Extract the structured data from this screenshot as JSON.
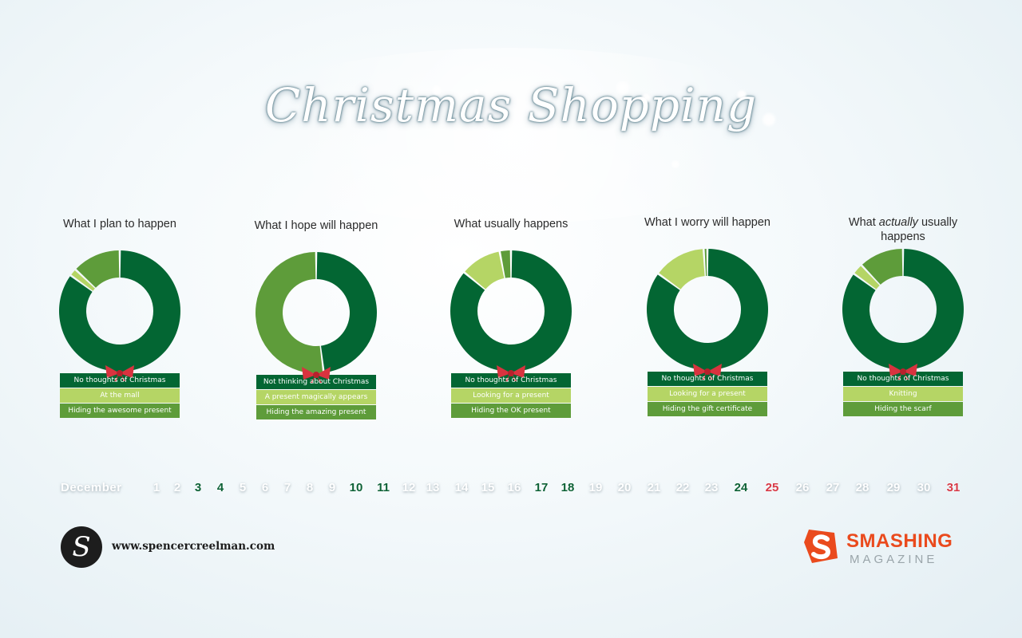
{
  "title": "Christmas Shopping",
  "colors": {
    "dark": "#036633",
    "light": "#b5d565",
    "mid": "#5e9c3a",
    "bow": "#d9333f",
    "weekend": "#0e6236",
    "holiday": "#d83a47"
  },
  "chart_data": [
    {
      "type": "pie",
      "title_parts": [
        "What I plan to happen"
      ],
      "categories": [
        "No thoughts of Christmas",
        "At the mall",
        "Hiding the awesome present"
      ],
      "values": [
        85,
        2,
        13
      ]
    },
    {
      "type": "pie",
      "title_parts": [
        "What I hope will happen"
      ],
      "categories": [
        "Not thinking about Christmas",
        "A present magically appears",
        "Hiding the amazing present"
      ],
      "values": [
        48,
        0,
        52
      ]
    },
    {
      "type": "pie",
      "title_parts": [
        "What usually happens"
      ],
      "categories": [
        "No thoughts of Christmas",
        "Looking for a present",
        "Hiding the OK present"
      ],
      "values": [
        86,
        11,
        3
      ]
    },
    {
      "type": "pie",
      "title_parts": [
        "What I worry will happen"
      ],
      "categories": [
        "No thoughts of Christmas",
        "Looking for a present",
        "Hiding the gift certificate"
      ],
      "values": [
        85,
        14,
        1
      ]
    },
    {
      "type": "pie",
      "title_parts": [
        "What ",
        "actually",
        " usually happens"
      ],
      "categories": [
        "No thoughts of Christmas",
        "Knitting",
        "Hiding the scarf"
      ],
      "values": [
        85,
        3,
        12
      ]
    }
  ],
  "calendar": {
    "month": "December",
    "days": [
      {
        "label": "1",
        "type": "normal"
      },
      {
        "label": "2",
        "type": "normal"
      },
      {
        "label": "3",
        "type": "weekend"
      },
      {
        "label": "4",
        "type": "weekend"
      },
      {
        "label": "5",
        "type": "normal"
      },
      {
        "label": "6",
        "type": "normal"
      },
      {
        "label": "7",
        "type": "normal"
      },
      {
        "label": "8",
        "type": "normal"
      },
      {
        "label": "9",
        "type": "normal"
      },
      {
        "label": "10",
        "type": "weekend"
      },
      {
        "label": "11",
        "type": "weekend"
      },
      {
        "label": "12",
        "type": "normal"
      },
      {
        "label": "13",
        "type": "normal"
      },
      {
        "label": "14",
        "type": "normal"
      },
      {
        "label": "15",
        "type": "normal"
      },
      {
        "label": "16",
        "type": "normal"
      },
      {
        "label": "17",
        "type": "weekend"
      },
      {
        "label": "18",
        "type": "weekend"
      },
      {
        "label": "19",
        "type": "normal"
      },
      {
        "label": "20",
        "type": "normal"
      },
      {
        "label": "21",
        "type": "normal"
      },
      {
        "label": "22",
        "type": "normal"
      },
      {
        "label": "23",
        "type": "normal"
      },
      {
        "label": "24",
        "type": "weekend"
      },
      {
        "label": "25",
        "type": "holiday"
      },
      {
        "label": "26",
        "type": "normal"
      },
      {
        "label": "27",
        "type": "normal"
      },
      {
        "label": "28",
        "type": "normal"
      },
      {
        "label": "29",
        "type": "normal"
      },
      {
        "label": "30",
        "type": "normal"
      },
      {
        "label": "31",
        "type": "holiday"
      }
    ]
  },
  "footer": {
    "author_monogram": "S",
    "author_site": "www.spencercreelman.com",
    "brand_name": "SMASHING",
    "brand_sub": "MAGAZINE"
  }
}
